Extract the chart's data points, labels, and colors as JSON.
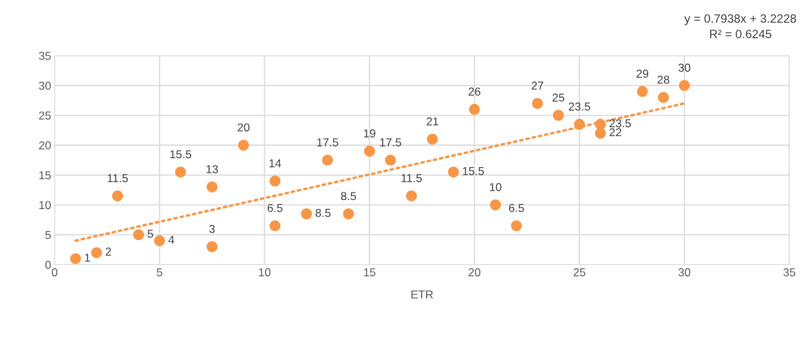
{
  "chart_data": {
    "type": "scatter",
    "xlabel": "ETR",
    "series": [
      {
        "color": "#f79646",
        "marker": "circle",
        "x": [
          1,
          2,
          3,
          4,
          5,
          6,
          7.5,
          7.5,
          9,
          10.5,
          10.5,
          12,
          13,
          14,
          15,
          16,
          17,
          18,
          19,
          20,
          21,
          22,
          23,
          24,
          25,
          26,
          26,
          28,
          29,
          30
        ],
        "values": [
          1,
          2,
          11.5,
          5,
          4,
          15.5,
          13,
          3,
          20,
          14,
          6.5,
          8.5,
          17.5,
          8.5,
          19,
          17.5,
          11.5,
          21,
          15.5,
          26,
          10,
          6.5,
          27,
          25,
          23.5,
          23.5,
          22,
          29,
          28,
          30
        ],
        "value_labels": [
          "1",
          "2",
          "11.5",
          "5",
          "4",
          "15.5",
          "13",
          "3",
          "20",
          "14",
          "6.5",
          "8.5",
          "17.5",
          "8.5",
          "19",
          "17.5",
          "11.5",
          "21",
          "15.5",
          "26",
          "10",
          "6.5",
          "27",
          "25",
          "23.5",
          "23.5",
          "22",
          "29",
          "28",
          "30"
        ]
      },
      {
        "type": "line",
        "color": "#f79646",
        "line_style": "dotted",
        "x": [
          1,
          30
        ],
        "values": [
          4.0,
          27.0
        ]
      }
    ],
    "annotations": [
      "y = 0.7938x + 3.2228",
      "R² = 0.6245"
    ],
    "xlim": [
      0,
      35
    ],
    "xticks": [
      0,
      5,
      10,
      15,
      20,
      25,
      30,
      35
    ],
    "ylim": [
      0,
      35
    ],
    "yticks": [
      0,
      5,
      10,
      15,
      20,
      25,
      30,
      35
    ],
    "grid": true,
    "legend": false
  }
}
